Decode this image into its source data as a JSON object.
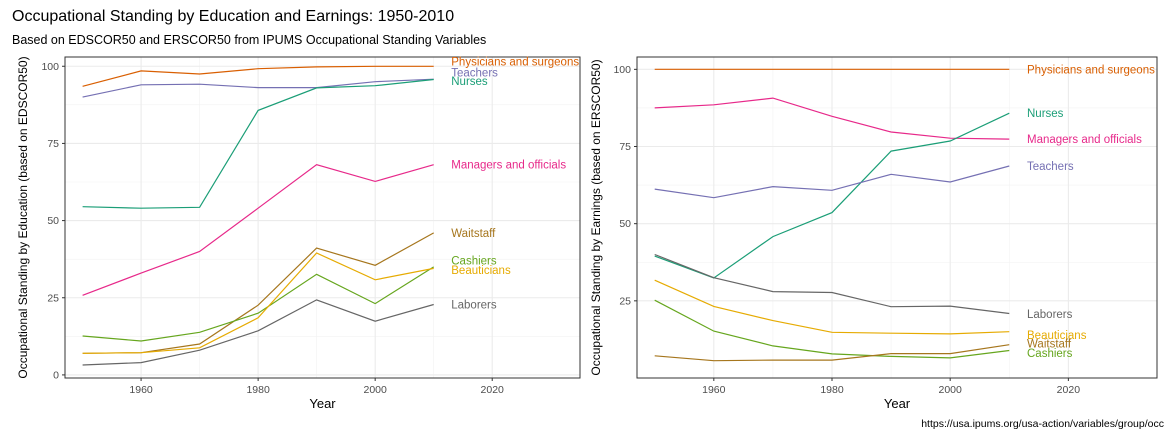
{
  "title": "Occupational Standing by Education and Earnings: 1950-2010",
  "subtitle": "Based on EDSCOR50 and ERSCOR50 from IPUMS Occupational Standing Variables",
  "caption": "https://usa.ipums.org/usa-action/variables/group/occ",
  "colors": {
    "Physicians and surgeons": "#D95F02",
    "Teachers": "#7570B3",
    "Nurses": "#1B9E77",
    "Managers and officials": "#E7298A",
    "Waitstaff": "#A6761D",
    "Cashiers": "#66A61E",
    "Beauticians": "#E6AB02",
    "Laborers": "#666666"
  },
  "chart_data": [
    {
      "type": "line",
      "xlabel": "Year",
      "ylabel": "Occupational Standing by Education (based on EDSCOR50)",
      "xlim": [
        1947,
        2035
      ],
      "ylim": [
        -1,
        103
      ],
      "xticks": [
        1960,
        1980,
        2000,
        2020
      ],
      "yticks": [
        0,
        25,
        50,
        75,
        100
      ],
      "x": [
        1950,
        1960,
        1970,
        1980,
        1990,
        2000,
        2010
      ],
      "series": [
        {
          "name": "Physicians and surgeons",
          "values": [
            93.5,
            98.5,
            97.5,
            99.2,
            99.8,
            100,
            100
          ]
        },
        {
          "name": "Teachers",
          "values": [
            90,
            94,
            94.2,
            93.1,
            93.1,
            95,
            95.8
          ]
        },
        {
          "name": "Nurses",
          "values": [
            54.5,
            54,
            54.3,
            85.7,
            93,
            93.7,
            95.7
          ]
        },
        {
          "name": "Managers and officials",
          "values": [
            25.8,
            33,
            40,
            54,
            68.1,
            62.7,
            68.1
          ]
        },
        {
          "name": "Waitstaff",
          "values": [
            7,
            7.2,
            10,
            22.6,
            41.1,
            35.5,
            46
          ]
        },
        {
          "name": "Cashiers",
          "values": [
            12.6,
            11,
            13.8,
            20,
            32.6,
            23.1,
            35
          ]
        },
        {
          "name": "Beauticians",
          "values": [
            7,
            7.2,
            8.8,
            18.5,
            39.5,
            30.8,
            34.5
          ]
        },
        {
          "name": "Laborers",
          "values": [
            3.2,
            4,
            8,
            14.3,
            24.3,
            17.4,
            22.8
          ]
        }
      ],
      "labels": [
        {
          "name": "Physicians and surgeons",
          "text": "Physicians and surgeons",
          "at": 101.5
        },
        {
          "name": "Teachers",
          "text": "Teachers",
          "at": 98
        },
        {
          "name": "Nurses",
          "text": "Nurses",
          "at": 95.2
        },
        {
          "name": "Managers and officials",
          "text": "Managers and officials",
          "at": 68.1
        },
        {
          "name": "Waitstaff",
          "text": "Waitstaff",
          "at": 46
        },
        {
          "name": "Cashiers",
          "text": "Cashiers",
          "at": 37
        },
        {
          "name": "Beauticians",
          "text": "Beauticians",
          "at": 34
        },
        {
          "name": "Laborers",
          "text": "Laborers",
          "at": 22.8
        }
      ]
    },
    {
      "type": "line",
      "xlabel": "Year",
      "ylabel": "Occupational Standing by Earnings (based on ERSCOR50)",
      "xlim": [
        1947,
        2035
      ],
      "ylim": [
        0,
        104
      ],
      "xticks": [
        1960,
        1980,
        2000,
        2020
      ],
      "yticks": [
        25,
        50,
        75,
        100
      ],
      "x": [
        1950,
        1960,
        1970,
        1980,
        1990,
        2000,
        2010
      ],
      "series": [
        {
          "name": "Physicians and surgeons",
          "values": [
            100,
            100,
            100,
            100,
            100,
            100,
            100
          ]
        },
        {
          "name": "Managers and officials",
          "values": [
            87.5,
            88.5,
            90.7,
            84.8,
            79.7,
            77.7,
            77.4
          ]
        },
        {
          "name": "Nurses",
          "values": [
            39.5,
            32.4,
            45.8,
            53.6,
            73.5,
            76.8,
            85.8
          ]
        },
        {
          "name": "Teachers",
          "values": [
            61.2,
            58.4,
            62,
            60.8,
            66,
            63.5,
            68.7
          ]
        },
        {
          "name": "Laborers",
          "values": [
            40,
            32.5,
            28,
            27.7,
            23.1,
            23.3,
            20.9
          ]
        },
        {
          "name": "Beauticians",
          "values": [
            31.7,
            23.2,
            18.6,
            14.8,
            14.5,
            14.3,
            15
          ]
        },
        {
          "name": "Cashiers",
          "values": [
            25.2,
            15.2,
            10.4,
            7.8,
            7,
            6.5,
            8.9
          ]
        },
        {
          "name": "Waitstaff",
          "values": [
            7.2,
            5.6,
            5.8,
            5.8,
            7.9,
            7.9,
            10.8
          ]
        }
      ],
      "labels": [
        {
          "name": "Physicians and surgeons",
          "text": "Physicians and surgeons",
          "at": 100
        },
        {
          "name": "Nurses",
          "text": "Nurses",
          "at": 85.8
        },
        {
          "name": "Managers and officials",
          "text": "Managers and officials",
          "at": 77.5
        },
        {
          "name": "Teachers",
          "text": "Teachers",
          "at": 68.7
        },
        {
          "name": "Laborers",
          "text": "Laborers",
          "at": 20.8
        },
        {
          "name": "Beauticians",
          "text": "Beauticians",
          "at": 14
        },
        {
          "name": "Waitstaff",
          "text": "Waitstaff",
          "at": 11.2
        },
        {
          "name": "Cashiers",
          "text": "Cashiers",
          "at": 8.1
        }
      ]
    }
  ]
}
